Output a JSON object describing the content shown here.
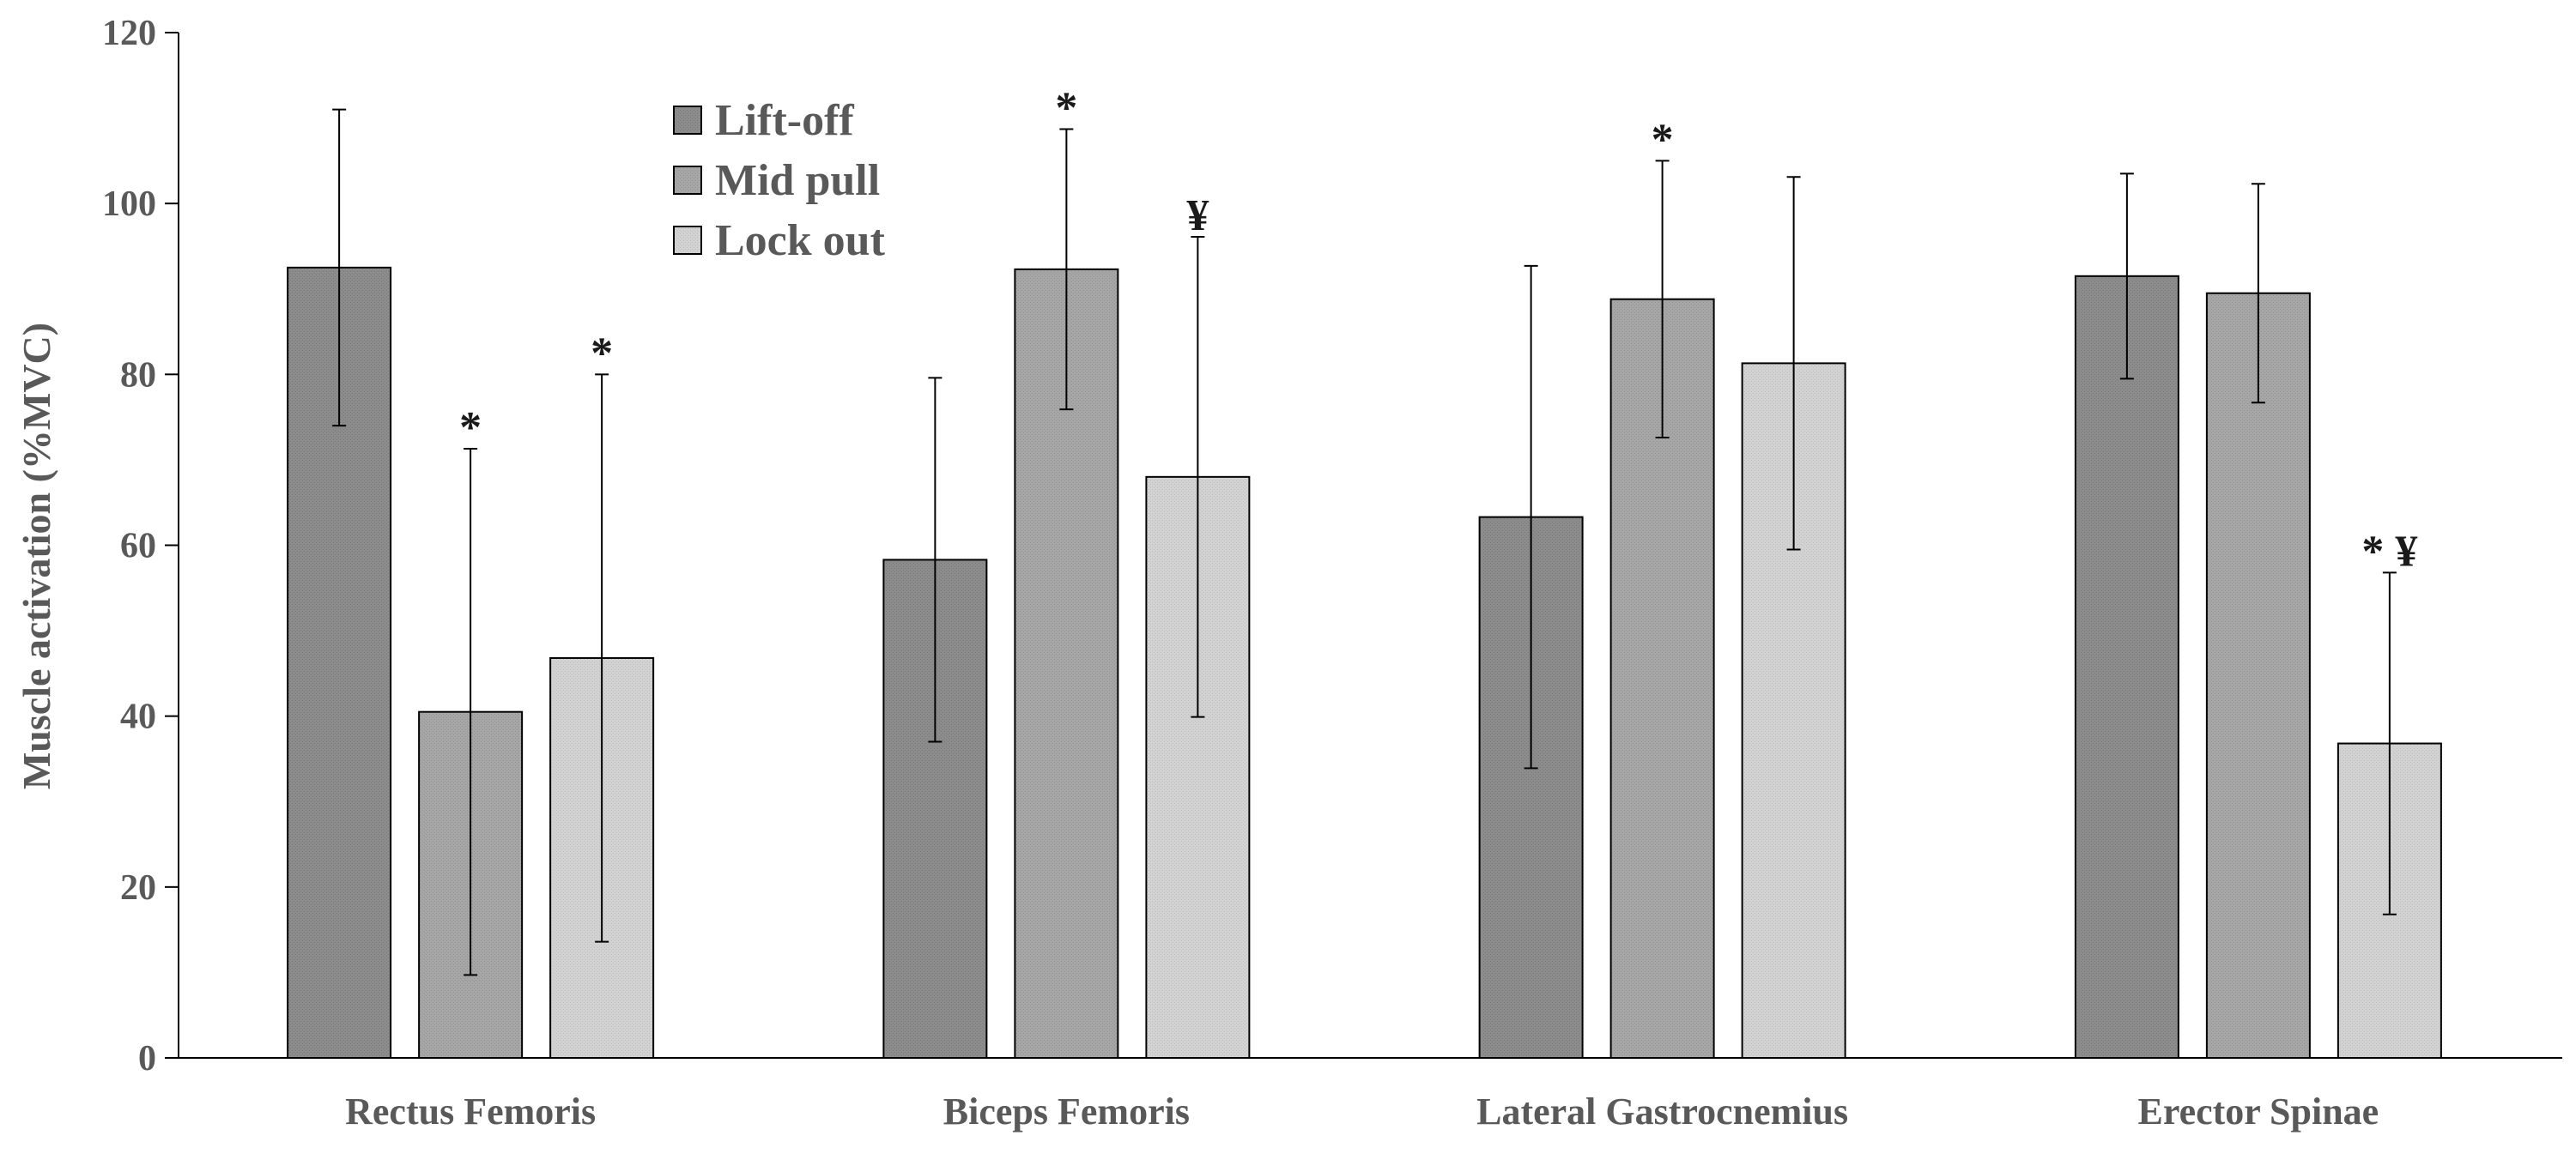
{
  "chart_data": {
    "type": "bar",
    "title": "",
    "xlabel": "",
    "ylabel": "Muscle activation (%MVC)",
    "ylim": [
      0,
      120
    ],
    "yticks": [
      0,
      20,
      40,
      60,
      80,
      100,
      120
    ],
    "grid": false,
    "legend_position": "top-left",
    "categories": [
      "Rectus Femoris",
      "Biceps Femoris",
      "Lateral Gastrocnemius",
      "Erector Spinae"
    ],
    "series": [
      {
        "name": "Lift-off",
        "color": "#8c8c8c",
        "values": [
          92.5,
          58.3,
          63.3,
          91.5
        ],
        "errors": [
          18.5,
          21.3,
          29.4,
          12.0
        ],
        "markers": [
          "",
          "",
          "",
          ""
        ]
      },
      {
        "name": "Mid pull",
        "color": "#a6a6a6",
        "values": [
          40.5,
          92.3,
          88.8,
          89.5
        ],
        "errors": [
          30.8,
          16.4,
          16.2,
          12.8
        ],
        "markers": [
          "*",
          "*",
          "*",
          ""
        ]
      },
      {
        "name": "Lock out",
        "color": "#d2d2d2",
        "values": [
          46.8,
          68.0,
          81.3,
          36.8
        ],
        "errors": [
          33.2,
          28.1,
          21.8,
          20.0
        ],
        "markers": [
          "*",
          "¥",
          "",
          "* ¥"
        ]
      }
    ]
  }
}
